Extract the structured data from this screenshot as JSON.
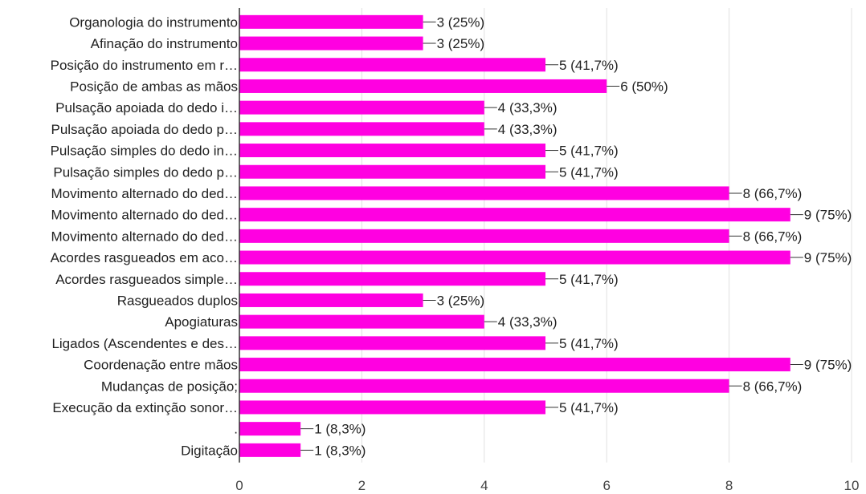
{
  "chart_data": {
    "type": "bar",
    "orientation": "horizontal",
    "categories": [
      "Organologia do instrumento",
      "Afinação do instrumento",
      "Posição do instrumento em r…",
      "Posição de ambas as mãos",
      "Pulsação apoiada do dedo i…",
      "Pulsação apoiada do dedo p…",
      "Pulsação simples do dedo in…",
      "Pulsação simples do dedo p…",
      "Movimento alternado do ded…",
      "Movimento alternado do ded…",
      "Movimento alternado do ded…",
      "Acordes rasgueados em aco…",
      "Acordes rasgueados simple…",
      "Rasgueados duplos",
      "Apogiaturas",
      "Ligados (Ascendentes e des…",
      "Coordenação entre mãos",
      "Mudanças de posição;",
      "Execução da extinção sonor…",
      ".",
      "Digitação"
    ],
    "values": [
      3,
      3,
      5,
      6,
      4,
      4,
      5,
      5,
      8,
      9,
      8,
      9,
      5,
      3,
      4,
      5,
      9,
      8,
      5,
      1,
      1
    ],
    "value_labels": [
      "3 (25%)",
      "3 (25%)",
      "5 (41,7%)",
      "6 (50%)",
      "4 (33,3%)",
      "4 (33,3%)",
      "5 (41,7%)",
      "5 (41,7%)",
      "8 (66,7%)",
      "9 (75%)",
      "8 (66,7%)",
      "9 (75%)",
      "5 (41,7%)",
      "3 (25%)",
      "4 (33,3%)",
      "5 (41,7%)",
      "9 (75%)",
      "8 (66,7%)",
      "5 (41,7%)",
      "1 (8,3%)",
      "1 (8,3%)"
    ],
    "xlim": [
      0,
      10
    ],
    "xticks": [
      "0",
      "2",
      "4",
      "6",
      "8",
      "10"
    ],
    "grid": true,
    "colors": {
      "bar": "#ff00e1"
    }
  }
}
